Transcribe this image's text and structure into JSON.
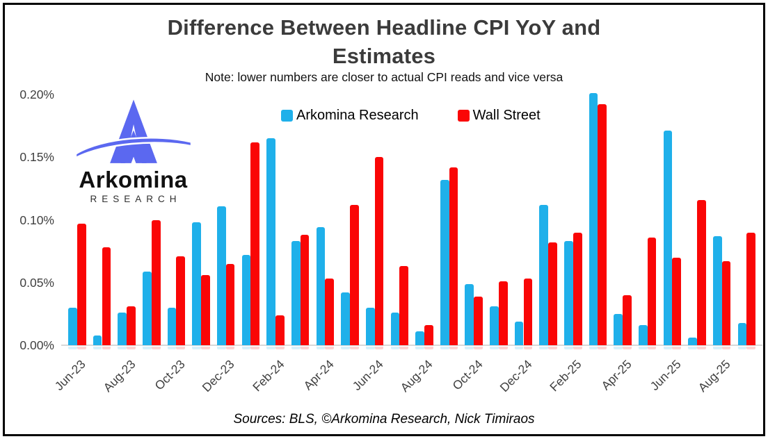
{
  "title": {
    "line1": "Difference Between Headline CPI YoY and",
    "line2": "Estimates",
    "note": "Note: lower numbers are closer to actual CPI reads and vice versa"
  },
  "logo": {
    "name": "Arkomina",
    "subtitle": "RESEARCH",
    "mark_color": "#5b68f0"
  },
  "legend": [
    {
      "label": "Arkomina Research",
      "color": "#1fb0ea"
    },
    {
      "label": "Wall Street",
      "color": "#fa0606"
    }
  ],
  "footer": {
    "text": "Sources: BLS, ©Arkomina Research, Nick Timiraos"
  },
  "colors": {
    "title": "#3b3b3b",
    "axis_text": "#3f3f3f",
    "axis_line": "#d8d8d8"
  },
  "chart_data": {
    "type": "bar",
    "title": "Difference Between Headline CPI YoY and Estimates",
    "subtitle": "Note: lower numbers are closer to actual CPI reads and vice versa",
    "unit": "percent",
    "ylim": [
      0,
      0.2
    ],
    "grid": false,
    "legend_position": "top-center",
    "y_ticks": [
      "0.00%",
      "0.05%",
      "0.10%",
      "0.15%",
      "0.20%"
    ],
    "categories": [
      "Jun-23",
      "Jul-23",
      "Aug-23",
      "Sep-23",
      "Oct-23",
      "Nov-23",
      "Dec-23",
      "Jan-24",
      "Feb-24",
      "Mar-24",
      "Apr-24",
      "May-24",
      "Jun-24",
      "Jul-24",
      "Aug-24",
      "Sep-24",
      "Oct-24",
      "Nov-24",
      "Dec-24",
      "Jan-25",
      "Feb-25",
      "Mar-25",
      "Apr-25",
      "May-25",
      "Jun-25",
      "Jul-25",
      "Aug-25",
      "Sep-25"
    ],
    "x_tick_labels": [
      "Jun-23",
      "Aug-23",
      "Oct-23",
      "Dec-23",
      "Feb-24",
      "Apr-24",
      "Jun-24",
      "Aug-24",
      "Oct-24",
      "Dec-24",
      "Feb-25",
      "Apr-25",
      "Jun-25",
      "Aug-25"
    ],
    "series": [
      {
        "name": "Arkomina Research",
        "color": "#1fb0ea",
        "values": [
          0.03,
          0.008,
          0.026,
          0.059,
          0.03,
          0.098,
          0.111,
          0.072,
          0.165,
          0.083,
          0.094,
          0.042,
          0.03,
          0.026,
          0.011,
          0.132,
          0.049,
          0.031,
          0.019,
          0.112,
          0.083,
          0.201,
          0.025,
          0.016,
          0.171,
          0.006,
          0.087,
          0.018
        ]
      },
      {
        "name": "Wall Street",
        "color": "#fa0606",
        "values": [
          0.097,
          0.078,
          0.031,
          0.1,
          0.071,
          0.056,
          0.065,
          0.162,
          0.024,
          0.088,
          0.053,
          0.112,
          0.15,
          0.063,
          0.016,
          0.142,
          0.039,
          0.051,
          0.053,
          0.082,
          0.09,
          0.192,
          0.04,
          0.086,
          0.07,
          0.116,
          0.067,
          0.09
        ]
      }
    ]
  }
}
